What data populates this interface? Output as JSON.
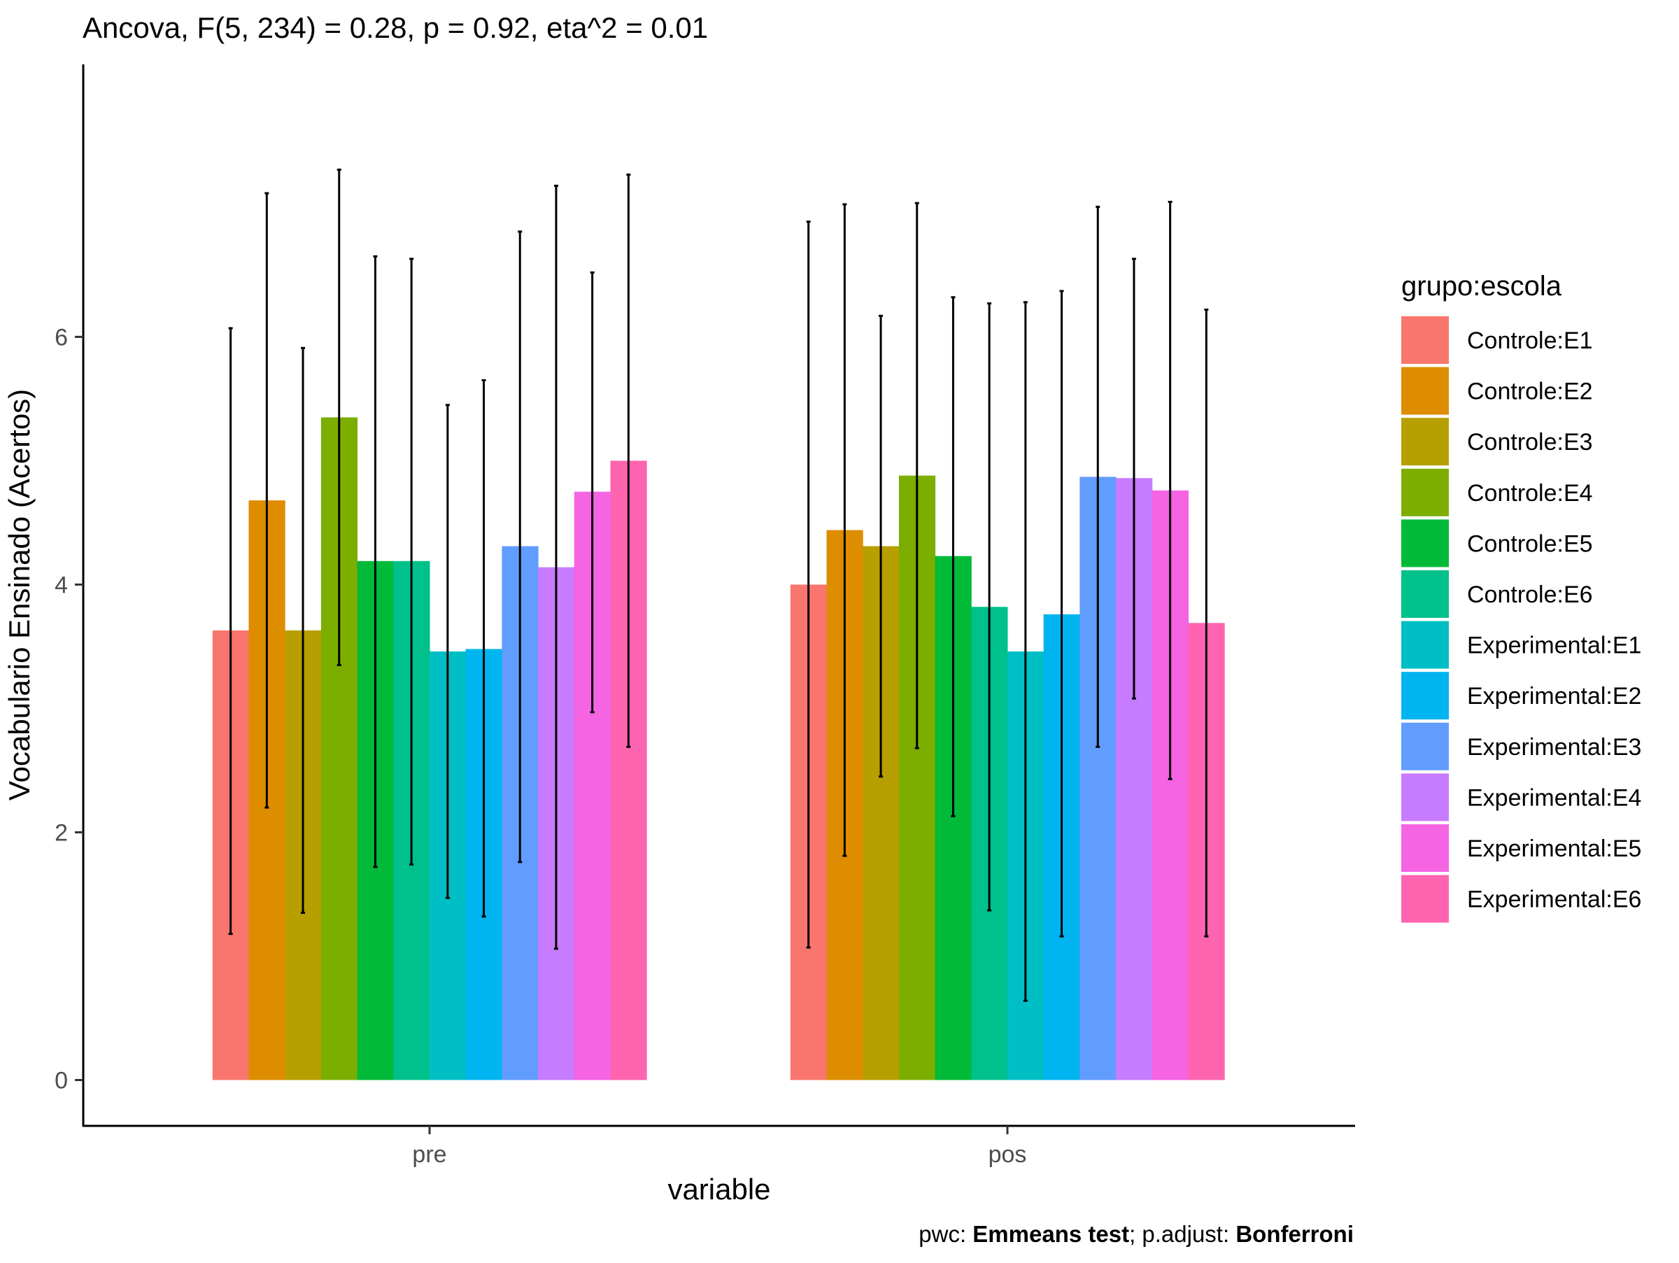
{
  "chart_data": {
    "type": "bar",
    "title": "Ancova, F(5, 234) = 0.28, p = 0.92, eta^2 = 0.01",
    "xlabel": "variable",
    "ylabel": "Vocabulario Ensinado (Acertos)",
    "categories": [
      "pre",
      "pos"
    ],
    "yticks": [
      0,
      2,
      4,
      6
    ],
    "ylim": [
      -0.37,
      8.2
    ],
    "grid": false,
    "legend": {
      "title": "grupo:escola",
      "position": "right"
    },
    "caption": {
      "prefix": "pwc: ",
      "test": "Emmeans test",
      "middle": "; p.adjust: ",
      "adjust": "Bonferroni"
    },
    "series": [
      {
        "name": "Controle:E1",
        "color": "#F8766D",
        "values": [
          3.63,
          4.0
        ],
        "errors": [
          [
            1.18,
            6.07
          ],
          [
            1.07,
            6.93
          ]
        ]
      },
      {
        "name": "Controle:E2",
        "color": "#DE8C00",
        "values": [
          4.68,
          4.44
        ],
        "errors": [
          [
            2.2,
            7.16
          ],
          [
            1.81,
            7.07
          ]
        ]
      },
      {
        "name": "Controle:E3",
        "color": "#B79F00",
        "values": [
          3.63,
          4.31
        ],
        "errors": [
          [
            1.35,
            5.91
          ],
          [
            2.45,
            6.17
          ]
        ]
      },
      {
        "name": "Controle:E4",
        "color": "#7CAE00",
        "values": [
          5.35,
          4.88
        ],
        "errors": [
          [
            3.35,
            7.35
          ],
          [
            2.68,
            7.08
          ]
        ]
      },
      {
        "name": "Controle:E5",
        "color": "#00BA38",
        "values": [
          4.19,
          4.23
        ],
        "errors": [
          [
            1.72,
            6.65
          ],
          [
            2.13,
            6.32
          ]
        ]
      },
      {
        "name": "Controle:E6",
        "color": "#00C08B",
        "values": [
          4.19,
          3.82
        ],
        "errors": [
          [
            1.74,
            6.63
          ],
          [
            1.37,
            6.27
          ]
        ]
      },
      {
        "name": "Experimental:E1",
        "color": "#00BFC4",
        "values": [
          3.46,
          3.46
        ],
        "errors": [
          [
            1.47,
            5.45
          ],
          [
            0.64,
            6.28
          ]
        ]
      },
      {
        "name": "Experimental:E2",
        "color": "#00B4F0",
        "values": [
          3.48,
          3.76
        ],
        "errors": [
          [
            1.32,
            5.65
          ],
          [
            1.16,
            6.37
          ]
        ]
      },
      {
        "name": "Experimental:E3",
        "color": "#619CFF",
        "values": [
          4.31,
          4.87
        ],
        "errors": [
          [
            1.76,
            6.85
          ],
          [
            2.69,
            7.05
          ]
        ]
      },
      {
        "name": "Experimental:E4",
        "color": "#C77CFF",
        "values": [
          4.14,
          4.86
        ],
        "errors": [
          [
            1.06,
            7.22
          ],
          [
            3.08,
            6.63
          ]
        ]
      },
      {
        "name": "Experimental:E5",
        "color": "#F564E3",
        "values": [
          4.75,
          4.76
        ],
        "errors": [
          [
            2.97,
            6.52
          ],
          [
            2.43,
            7.09
          ]
        ]
      },
      {
        "name": "Experimental:E6",
        "color": "#FF64B0",
        "values": [
          5.0,
          3.69
        ],
        "errors": [
          [
            2.69,
            7.31
          ],
          [
            1.16,
            6.22
          ]
        ]
      }
    ]
  }
}
